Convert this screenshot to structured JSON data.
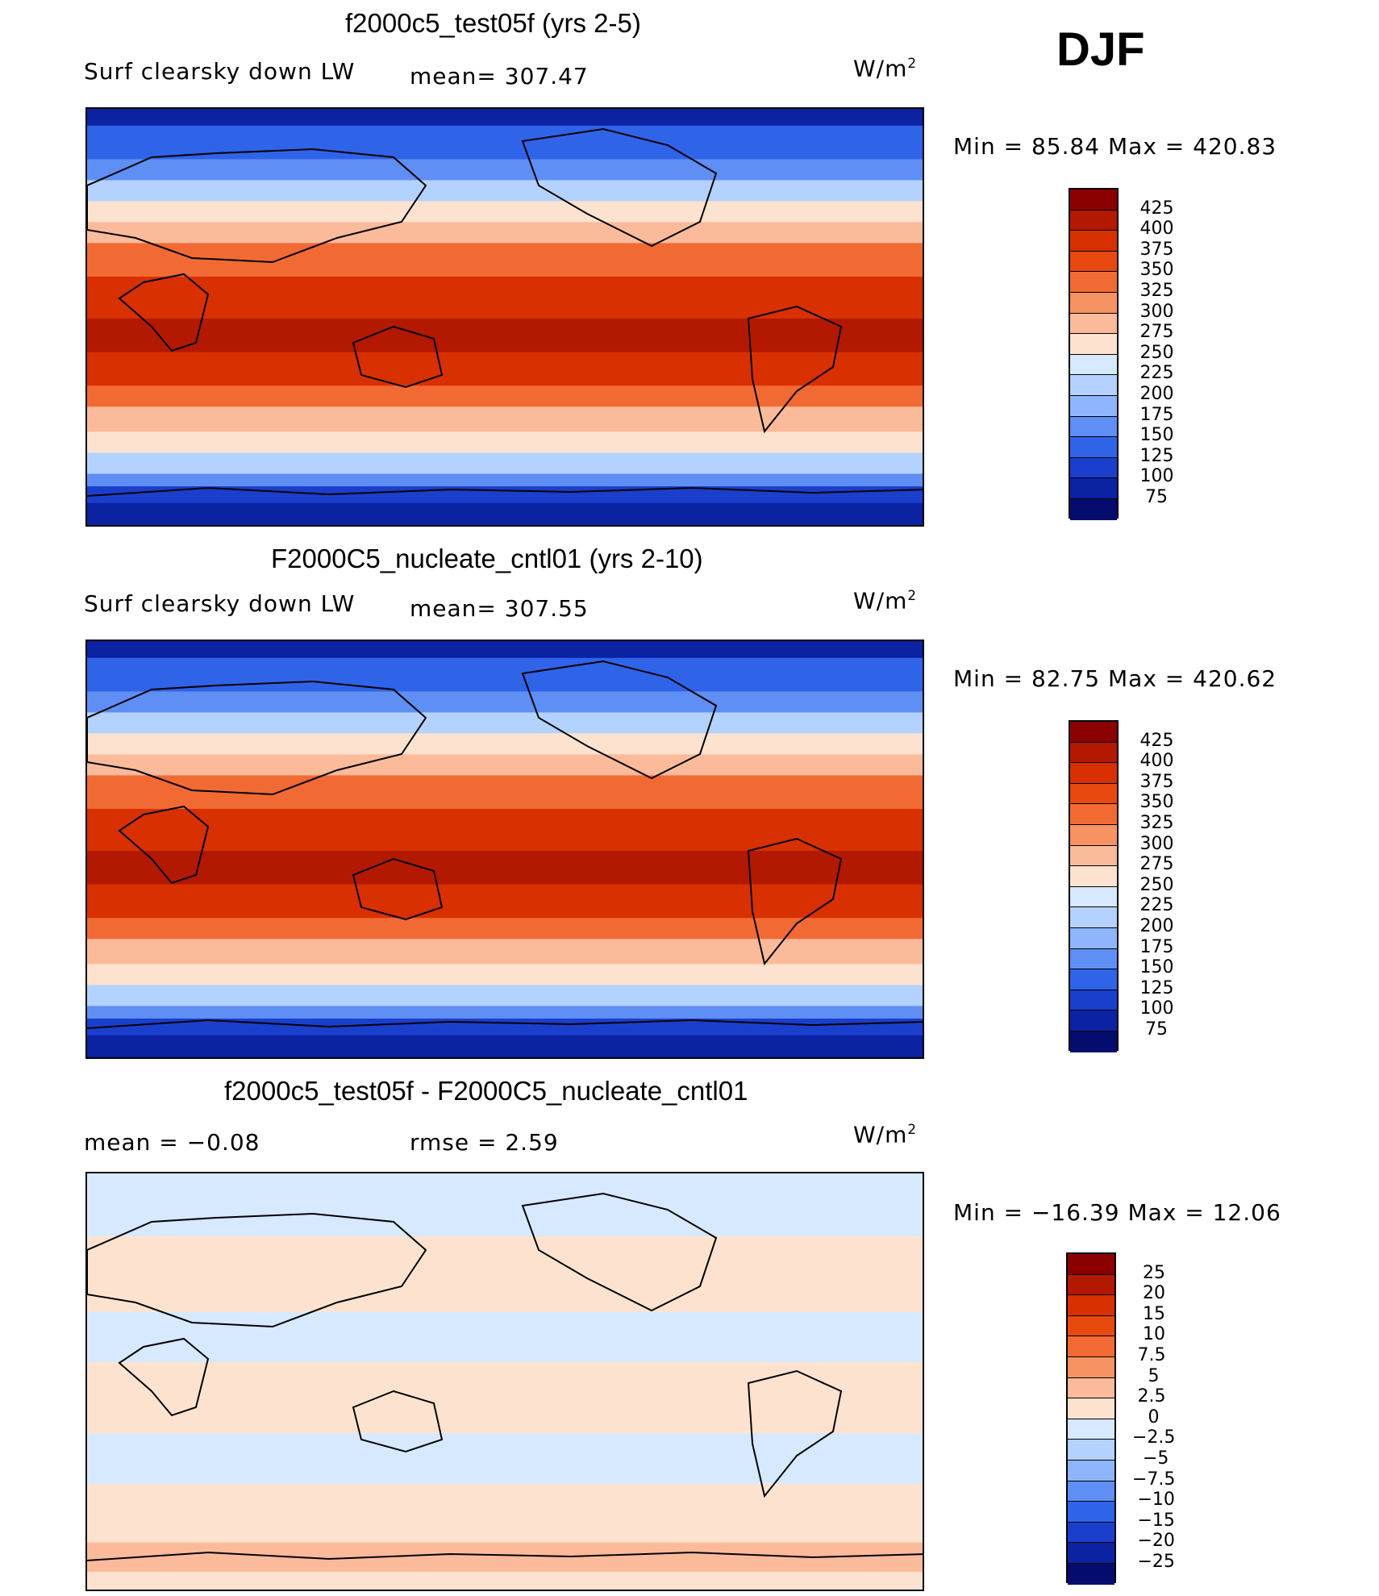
{
  "season": "DJF",
  "panels": [
    {
      "title": "f2000c5_test05f (yrs 2-5)",
      "left_label": "Surf clearsky down LW",
      "mid_label": "mean= 307.47",
      "units": "W/m",
      "units_sup": "2",
      "minmax": "Min =   85.84 Max =  420.83",
      "kind": "abs"
    },
    {
      "title": "F2000C5_nucleate_cntl01 (yrs 2-10)",
      "left_label": "Surf clearsky down LW",
      "mid_label": "mean= 307.55",
      "units": "W/m",
      "units_sup": "2",
      "minmax": "Min =   82.75 Max =  420.62",
      "kind": "abs"
    },
    {
      "title": "f2000c5_test05f - F2000C5_nucleate_cntl01",
      "left_label": "mean =   −0.08",
      "mid_label": "rmse =    2.59",
      "units": "W/m",
      "units_sup": "2",
      "minmax": "Min = −16.39 Max =   12.06",
      "kind": "diff"
    }
  ],
  "chart_data": [
    {
      "type": "heatmap",
      "title": "f2000c5_test05f (yrs 2-5)",
      "variable": "Surf clearsky down LW",
      "mean": 307.47,
      "min": 85.84,
      "max": 420.83,
      "units": "W/m2",
      "colorbar_levels": [
        "425",
        "400",
        "375",
        "350",
        "325",
        "300",
        "275",
        "250",
        "225",
        "200",
        "175",
        "150",
        "125",
        "100",
        "75"
      ],
      "colorbar_colors": [
        "#8b0000",
        "#b31800",
        "#d83000",
        "#e8490f",
        "#f26a33",
        "#f79263",
        "#fbbb9b",
        "#fde3cf",
        "#d6e9ff",
        "#b4d2ff",
        "#8fb5ff",
        "#5f8ef5",
        "#2f63e8",
        "#1a3fcc",
        "#0b22a3",
        "#040c6e"
      ]
    },
    {
      "type": "heatmap",
      "title": "F2000C5_nucleate_cntl01 (yrs 2-10)",
      "variable": "Surf clearsky down LW",
      "mean": 307.55,
      "min": 82.75,
      "max": 420.62,
      "units": "W/m2",
      "colorbar_levels": [
        "425",
        "400",
        "375",
        "350",
        "325",
        "300",
        "275",
        "250",
        "225",
        "200",
        "175",
        "150",
        "125",
        "100",
        "75"
      ],
      "colorbar_colors": [
        "#8b0000",
        "#b31800",
        "#d83000",
        "#e8490f",
        "#f26a33",
        "#f79263",
        "#fbbb9b",
        "#fde3cf",
        "#d6e9ff",
        "#b4d2ff",
        "#8fb5ff",
        "#5f8ef5",
        "#2f63e8",
        "#1a3fcc",
        "#0b22a3",
        "#040c6e"
      ]
    },
    {
      "type": "heatmap",
      "title": "f2000c5_test05f - F2000C5_nucleate_cntl01",
      "mean": -0.08,
      "rmse": 2.59,
      "min": -16.39,
      "max": 12.06,
      "units": "W/m2",
      "colorbar_levels": [
        "25",
        "20",
        "15",
        "10",
        "7.5",
        "5",
        "2.5",
        "0",
        "−2.5",
        "−5",
        "−7.5",
        "−10",
        "−15",
        "−20",
        "−25"
      ],
      "colorbar_colors": [
        "#8b0000",
        "#b31800",
        "#d83000",
        "#e8490f",
        "#f26a33",
        "#f79263",
        "#fbbb9b",
        "#fde3cf",
        "#d6e9ff",
        "#b4d2ff",
        "#8fb5ff",
        "#5f8ef5",
        "#2f63e8",
        "#1a3fcc",
        "#0b22a3",
        "#040c6e"
      ]
    }
  ]
}
